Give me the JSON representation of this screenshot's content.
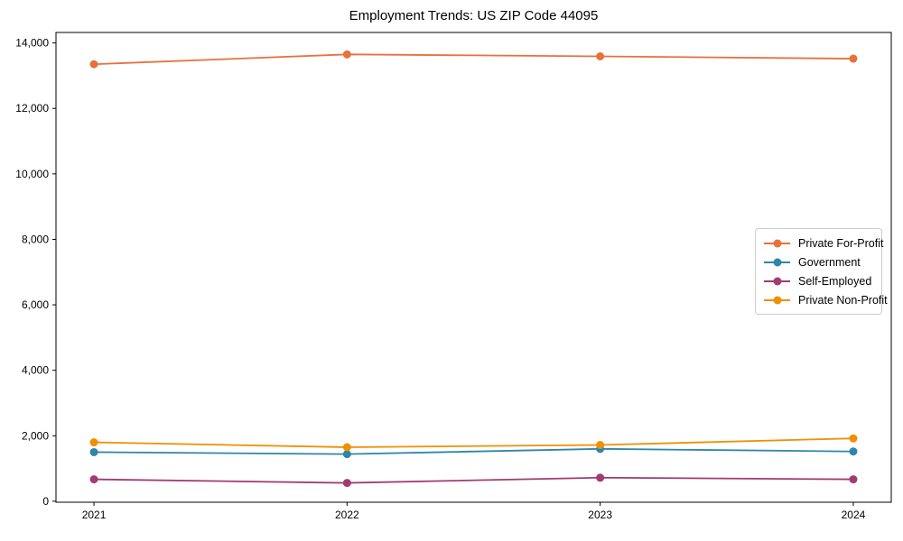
{
  "chart_data": {
    "type": "line",
    "title": "Employment Trends: US ZIP Code 44095",
    "x": [
      2021,
      2022,
      2023,
      2024
    ],
    "x_tick_labels": [
      "2021",
      "2022",
      "2023",
      "2024"
    ],
    "y_ticks": [
      0,
      2000,
      4000,
      6000,
      8000,
      10000,
      12000,
      14000
    ],
    "y_tick_labels": [
      "0",
      "2,000",
      "4,000",
      "6,000",
      "8,000",
      "10,000",
      "12,000",
      "14,000"
    ],
    "xlim": [
      2020.85,
      2024.15
    ],
    "ylim": [
      -30,
      14320
    ],
    "grid": false,
    "legend_position": "center right",
    "series": [
      {
        "name": "Private For-Profit",
        "color": "#E8713C",
        "values": [
          13350,
          13650,
          13590,
          13520
        ]
      },
      {
        "name": "Government",
        "color": "#2E86AB",
        "values": [
          1500,
          1440,
          1600,
          1520
        ]
      },
      {
        "name": "Self-Employed",
        "color": "#A23B72",
        "values": [
          670,
          560,
          720,
          670
        ]
      },
      {
        "name": "Private Non-Profit",
        "color": "#F18F01",
        "values": [
          1800,
          1650,
          1720,
          1920
        ]
      }
    ],
    "axis_color": "#000000",
    "tick_label_color": "#000000"
  }
}
